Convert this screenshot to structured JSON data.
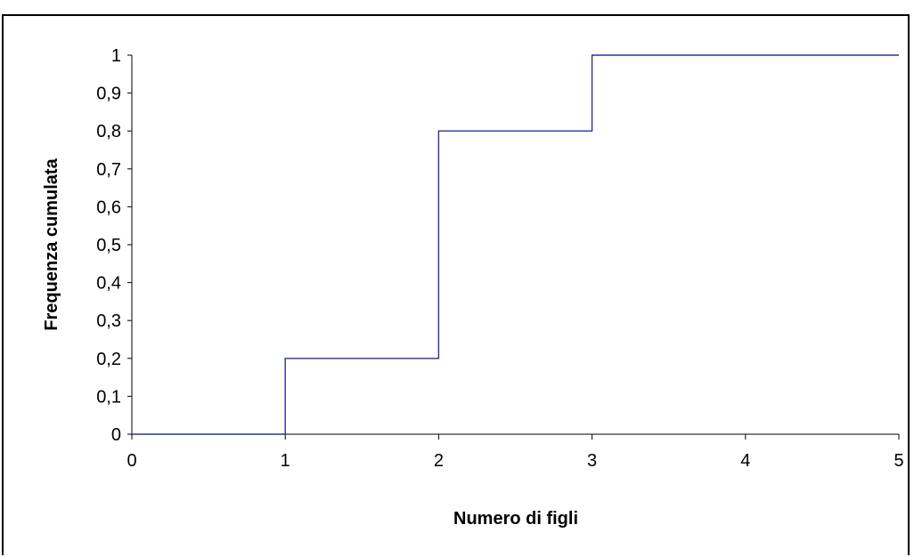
{
  "chart_data": {
    "type": "line",
    "step": true,
    "title": "",
    "xlabel": "Numero di figli",
    "ylabel": "Frequenza cumulata",
    "xlim": [
      0,
      5
    ],
    "ylim": [
      0,
      1
    ],
    "x_ticks": [
      "0",
      "1",
      "2",
      "3",
      "4",
      "5"
    ],
    "y_ticks": [
      "0",
      "0,1",
      "0,2",
      "0,3",
      "0,4",
      "0,5",
      "0,6",
      "0,7",
      "0,8",
      "0,9",
      "1"
    ],
    "grid": false,
    "series": [
      {
        "color": "#2E3192",
        "points": [
          [
            0,
            0
          ],
          [
            1,
            0
          ],
          [
            1,
            0.2
          ],
          [
            2,
            0.2
          ],
          [
            2,
            0.8
          ],
          [
            3,
            0.8
          ],
          [
            3,
            1
          ],
          [
            5,
            1
          ]
        ]
      }
    ]
  }
}
